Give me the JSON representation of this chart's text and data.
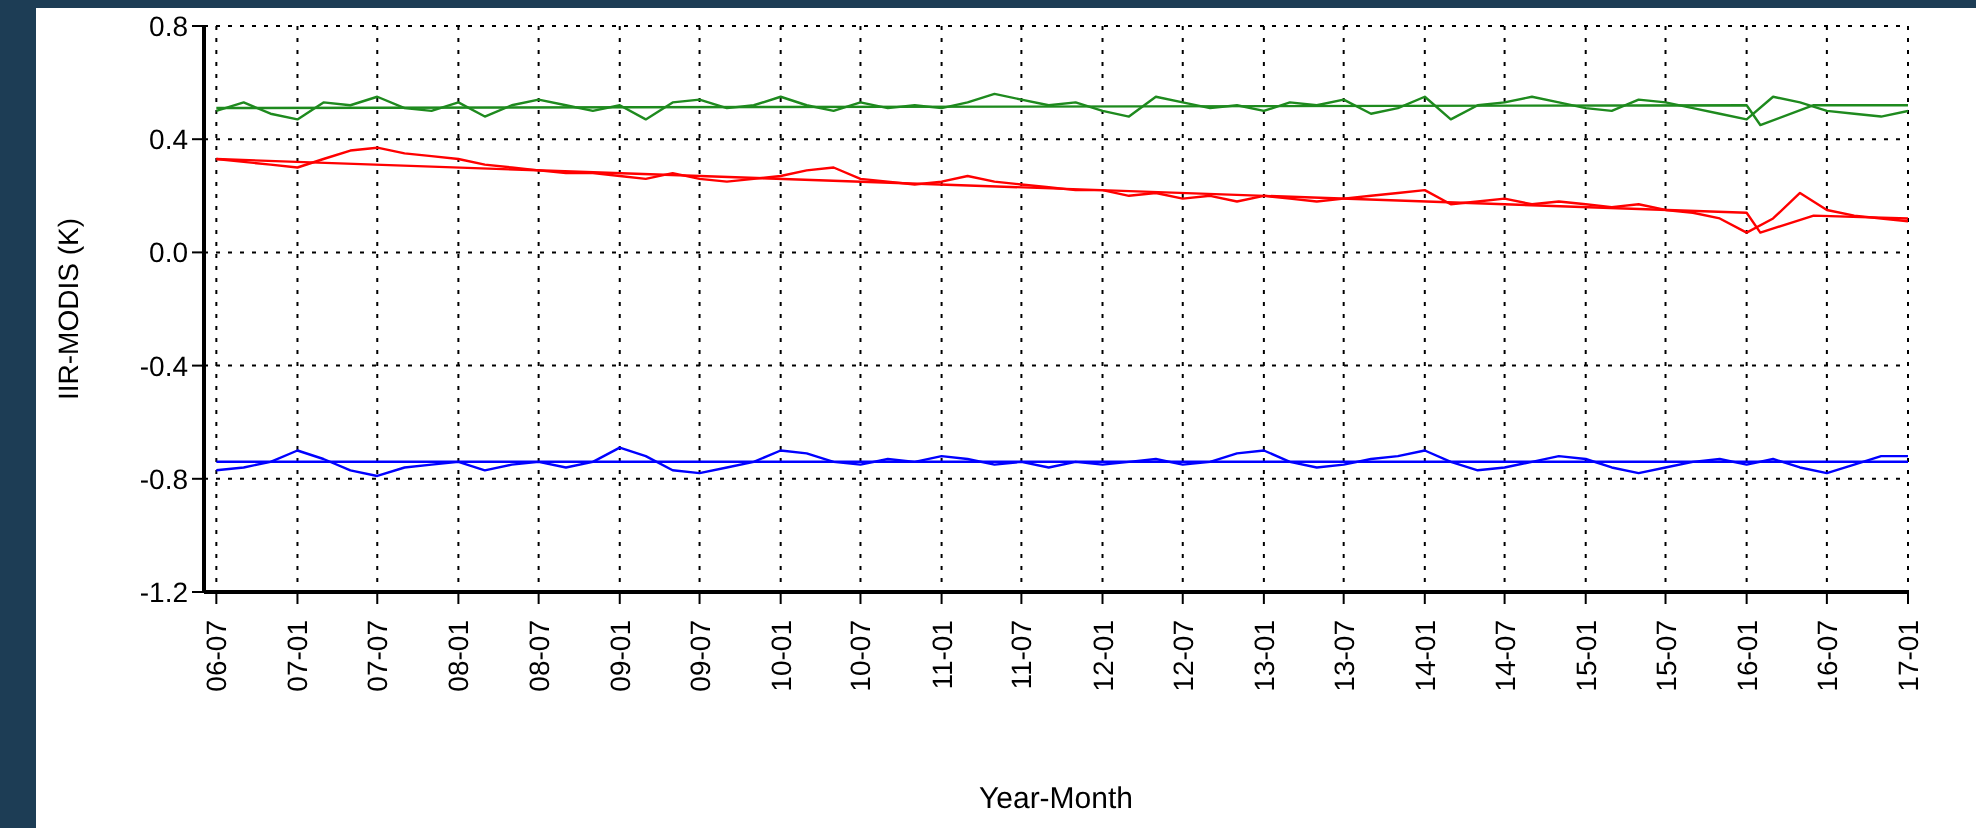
{
  "chart_data": {
    "type": "line",
    "xlabel": "Year-Month",
    "ylabel": "IIR-MODIS (K)",
    "xlim": [
      "2006-06-03",
      "2017-01"
    ],
    "xticks": [
      {
        "value": "2006-07",
        "label": "06-07"
      },
      {
        "value": "2007-01",
        "label": "07-01"
      },
      {
        "value": "2007-07",
        "label": "07-07"
      },
      {
        "value": "2008-01",
        "label": "08-01"
      },
      {
        "value": "2008-07",
        "label": "08-07"
      },
      {
        "value": "2009-01",
        "label": "09-01"
      },
      {
        "value": "2009-07",
        "label": "09-07"
      },
      {
        "value": "2010-01",
        "label": "10-01"
      },
      {
        "value": "2010-07",
        "label": "10-07"
      },
      {
        "value": "2011-01",
        "label": "11-01"
      },
      {
        "value": "2011-07",
        "label": "11-07"
      },
      {
        "value": "2012-01",
        "label": "12-01"
      },
      {
        "value": "2012-07",
        "label": "12-07"
      },
      {
        "value": "2013-01",
        "label": "13-01"
      },
      {
        "value": "2013-07",
        "label": "13-07"
      },
      {
        "value": "2014-01",
        "label": "14-01"
      },
      {
        "value": "2014-07",
        "label": "14-07"
      },
      {
        "value": "2015-01",
        "label": "15-01"
      },
      {
        "value": "2015-07",
        "label": "15-07"
      },
      {
        "value": "2016-01",
        "label": "16-01"
      },
      {
        "value": "2016-07",
        "label": "16-07"
      },
      {
        "value": "2017-01",
        "label": "17-01"
      }
    ],
    "ylim": [
      -1.2,
      0.8
    ],
    "yticks": [
      0.8,
      0.4,
      {
        "value": 0,
        "label": "0.0"
      },
      -0.4,
      -0.8,
      -1.2
    ],
    "grid": true,
    "x": [
      "2006-07",
      "2006-09",
      "2006-11",
      "2007-01",
      "2007-03",
      "2007-05",
      "2007-07",
      "2007-09",
      "2007-11",
      "2008-01",
      "2008-03",
      "2008-05",
      "2008-07",
      "2008-09",
      "2008-11",
      "2009-01",
      "2009-03",
      "2009-05",
      "2009-07",
      "2009-09",
      "2009-11",
      "2010-01",
      "2010-03",
      "2010-05",
      "2010-07",
      "2010-09",
      "2010-11",
      "2011-01",
      "2011-03",
      "2011-05",
      "2011-07",
      "2011-09",
      "2011-11",
      "2012-01",
      "2012-03",
      "2012-05",
      "2012-07",
      "2012-09",
      "2012-11",
      "2013-01",
      "2013-03",
      "2013-05",
      "2013-07",
      "2013-09",
      "2013-11",
      "2014-01",
      "2014-03",
      "2014-05",
      "2014-07",
      "2014-09",
      "2014-11",
      "2015-01",
      "2015-03",
      "2015-05",
      "2015-07",
      "2015-09",
      "2015-11",
      "2016-01",
      "2016-03",
      "2016-05",
      "2016-07",
      "2016-09",
      "2016-11",
      "2017-01"
    ],
    "series": [
      {
        "color": "#1e8a1e",
        "values": [
          0.5,
          0.53,
          0.49,
          0.47,
          0.53,
          0.52,
          0.55,
          0.51,
          0.5,
          0.53,
          0.48,
          0.52,
          0.54,
          0.52,
          0.5,
          0.52,
          0.47,
          0.53,
          0.54,
          0.51,
          0.52,
          0.55,
          0.52,
          0.5,
          0.53,
          0.51,
          0.52,
          0.51,
          0.53,
          0.56,
          0.54,
          0.52,
          0.53,
          0.5,
          0.48,
          0.55,
          0.53,
          0.51,
          0.52,
          0.5,
          0.53,
          0.52,
          0.54,
          0.49,
          0.51,
          0.55,
          0.47,
          0.52,
          0.53,
          0.55,
          0.53,
          0.51,
          0.5,
          0.54,
          0.53,
          0.51,
          0.49,
          0.47,
          0.55,
          0.53,
          0.5,
          0.49,
          0.48,
          0.5
        ]
      },
      {
        "color": "#ff0000",
        "values": [
          0.33,
          0.32,
          0.31,
          0.3,
          0.33,
          0.36,
          0.37,
          0.35,
          0.34,
          0.33,
          0.31,
          0.3,
          0.29,
          0.28,
          0.28,
          0.27,
          0.26,
          0.28,
          0.26,
          0.25,
          0.26,
          0.27,
          0.29,
          0.3,
          0.26,
          0.25,
          0.24,
          0.25,
          0.27,
          0.25,
          0.24,
          0.23,
          0.22,
          0.22,
          0.2,
          0.21,
          0.19,
          0.2,
          0.18,
          0.2,
          0.19,
          0.18,
          0.19,
          0.2,
          0.21,
          0.22,
          0.17,
          0.18,
          0.19,
          0.17,
          0.18,
          0.17,
          0.16,
          0.17,
          0.15,
          0.14,
          0.12,
          0.07,
          0.12,
          0.21,
          0.15,
          0.13,
          0.12,
          0.11
        ]
      },
      {
        "color": "#0000ff",
        "values": [
          -0.77,
          -0.76,
          -0.74,
          -0.7,
          -0.73,
          -0.77,
          -0.79,
          -0.76,
          -0.75,
          -0.74,
          -0.77,
          -0.75,
          -0.74,
          -0.76,
          -0.74,
          -0.69,
          -0.72,
          -0.77,
          -0.78,
          -0.76,
          -0.74,
          -0.7,
          -0.71,
          -0.74,
          -0.75,
          -0.73,
          -0.74,
          -0.72,
          -0.73,
          -0.75,
          -0.74,
          -0.76,
          -0.74,
          -0.75,
          -0.74,
          -0.73,
          -0.75,
          -0.74,
          -0.71,
          -0.7,
          -0.74,
          -0.76,
          -0.75,
          -0.73,
          -0.72,
          -0.7,
          -0.74,
          -0.77,
          -0.76,
          -0.74,
          -0.72,
          -0.73,
          -0.76,
          -0.78,
          -0.76,
          -0.74,
          -0.73,
          -0.75,
          -0.73,
          -0.76,
          -0.78,
          -0.75,
          -0.72,
          -0.72
        ]
      },
      {
        "color": "#1e8a1e",
        "x": [
          "2006-07",
          "2016-01",
          "2016-02",
          "2016-06",
          "2017-01"
        ],
        "values": [
          0.51,
          0.52,
          0.45,
          0.52,
          0.52
        ]
      },
      {
        "color": "#ff0000",
        "x": [
          "2006-07",
          "2016-01",
          "2016-02",
          "2016-06",
          "2017-01"
        ],
        "values": [
          0.33,
          0.14,
          0.07,
          0.13,
          0.12
        ]
      },
      {
        "color": "#0000ff",
        "x": [
          "2006-07",
          "2017-01"
        ],
        "values": [
          -0.74,
          -0.74
        ]
      }
    ]
  }
}
